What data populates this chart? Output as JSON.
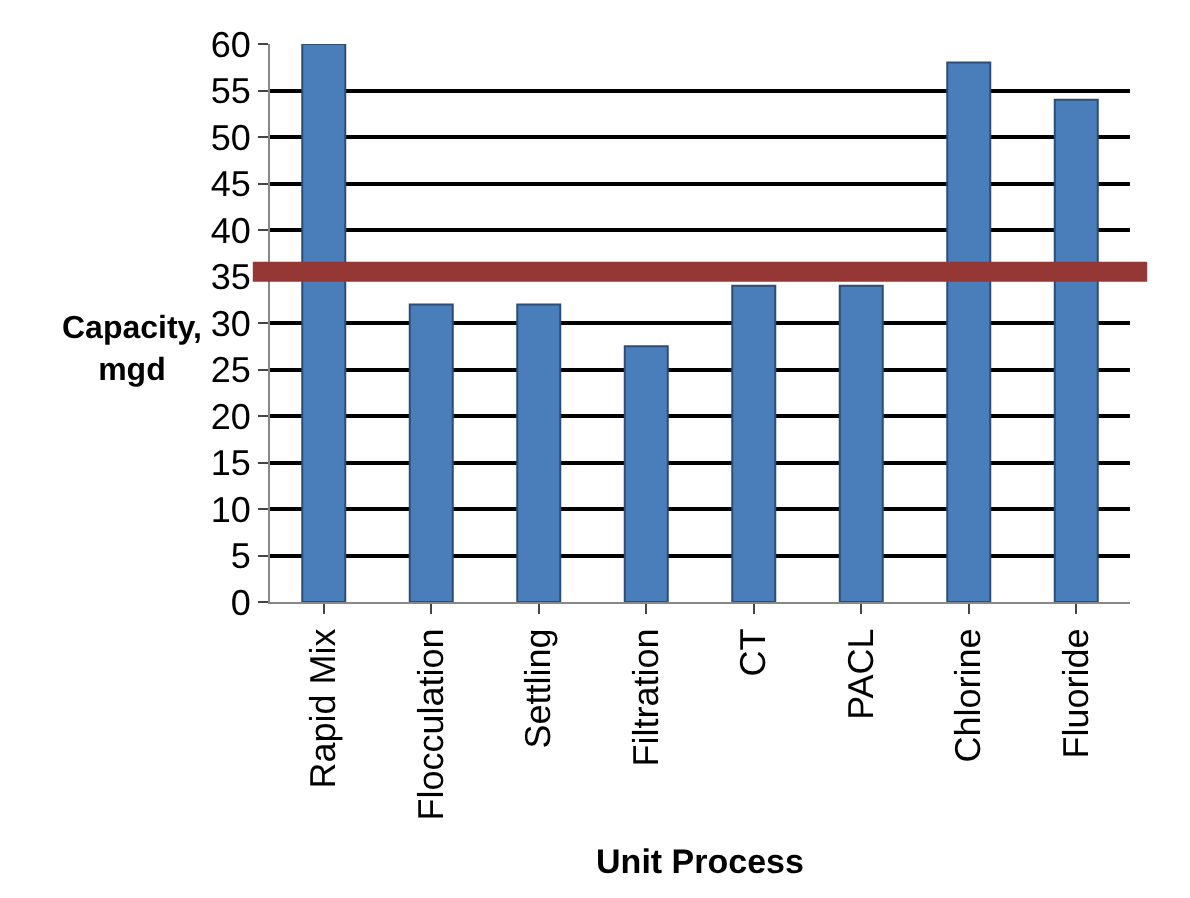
{
  "chart_data": {
    "type": "bar",
    "xlabel": "Unit Process",
    "ylabel": "Capacity, mgd",
    "categories": [
      "Rapid Mix",
      "Flocculation",
      "Settling",
      "Filtration",
      "CT",
      "PACL",
      "Chlorine",
      "Fluoride"
    ],
    "values": [
      60,
      32,
      32,
      27.5,
      34,
      34,
      58,
      54
    ],
    "color": "#4a7ebb",
    "ylim": [
      0,
      60
    ],
    "yticks": [
      0,
      5,
      10,
      15,
      20,
      25,
      30,
      35,
      40,
      45,
      50,
      55,
      60
    ],
    "grid": "y",
    "ref_lines": [
      {
        "axis": "y",
        "value": 35.5,
        "color": "#953735"
      }
    ]
  }
}
